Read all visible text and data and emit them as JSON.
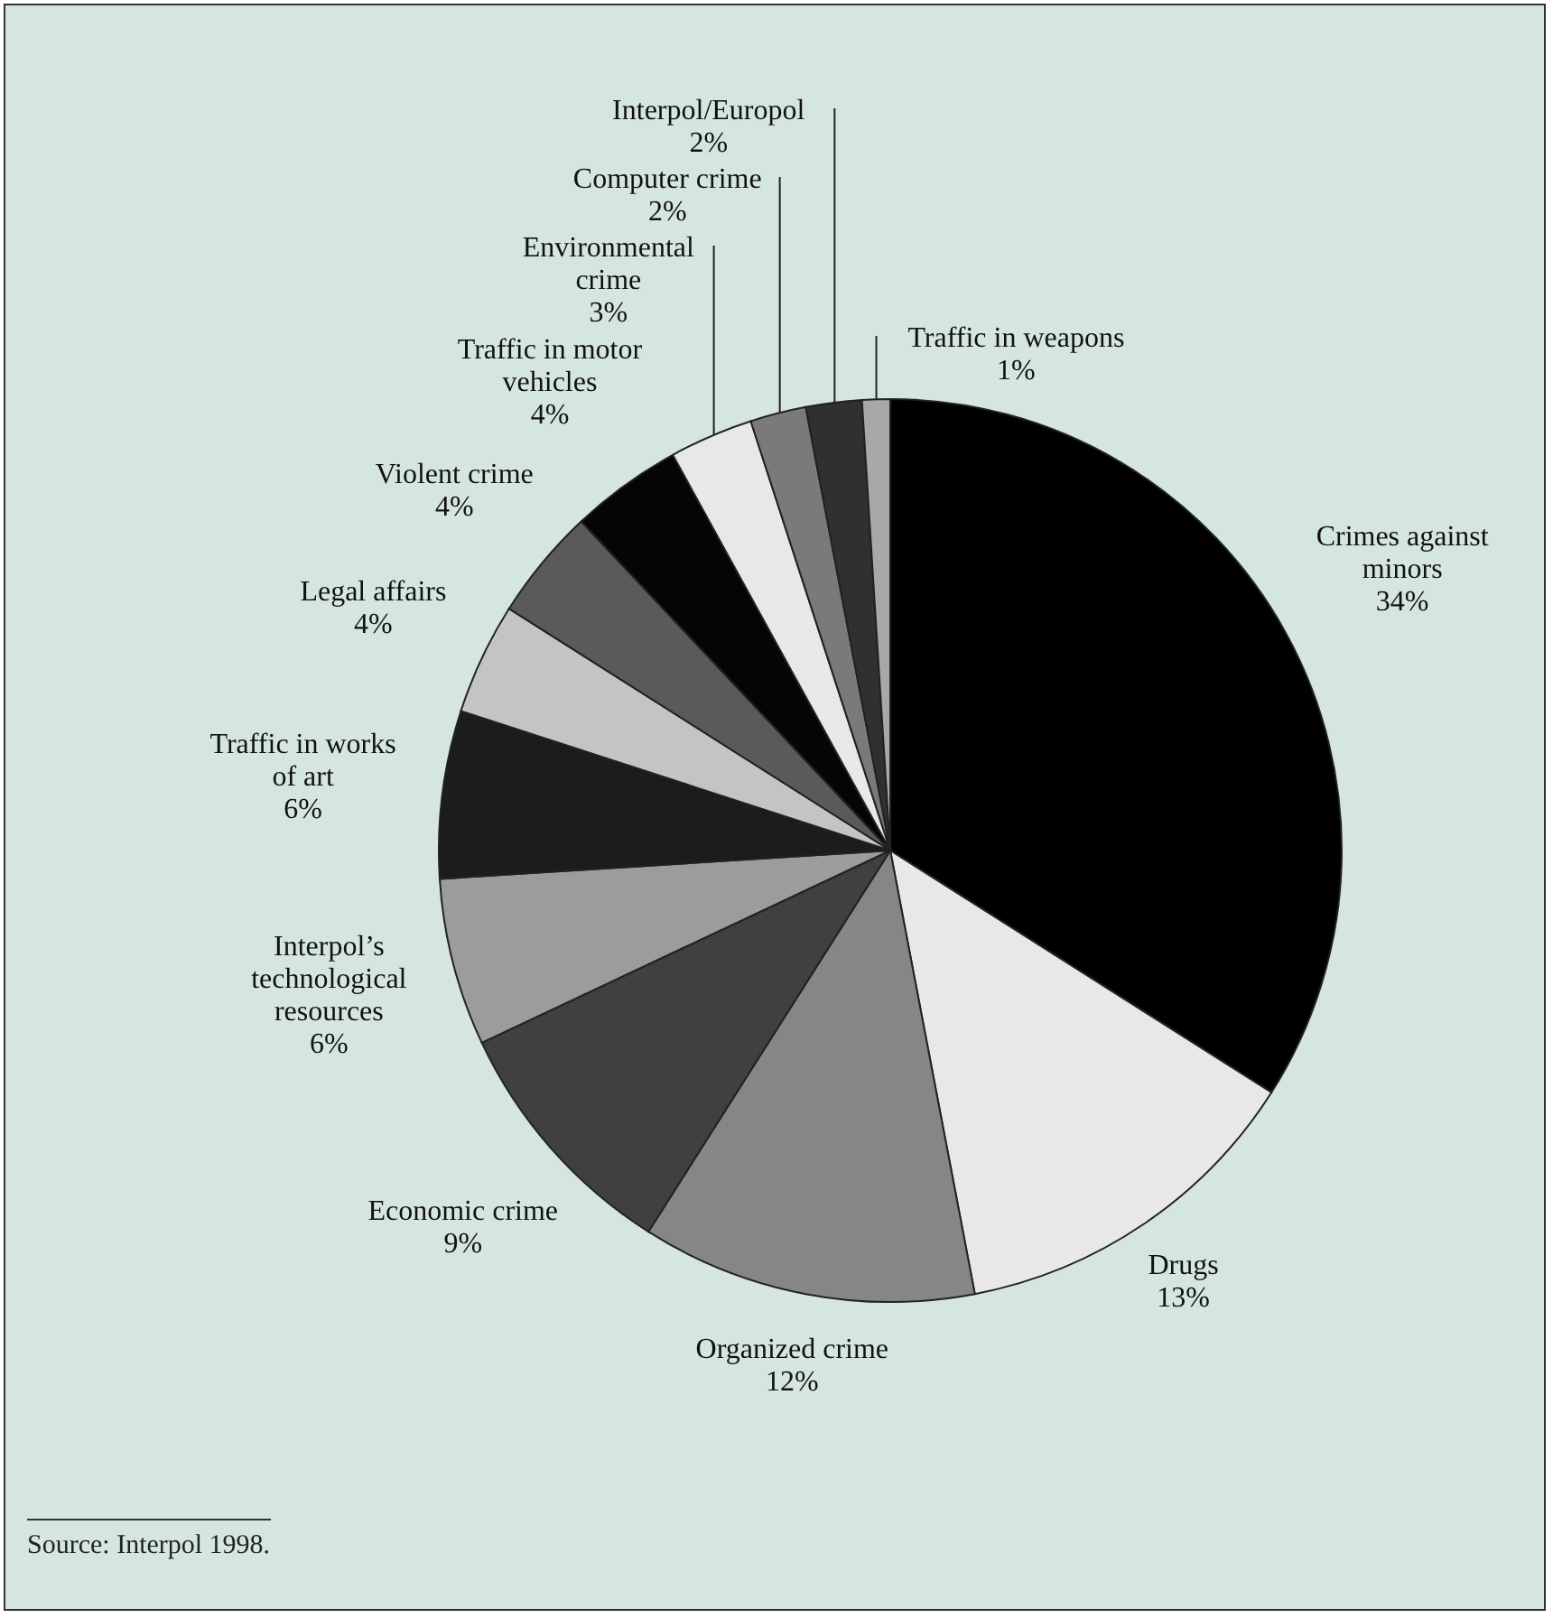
{
  "chart_data": {
    "type": "pie",
    "categories": [
      "Crimes against minors",
      "Drugs",
      "Organized crime",
      "Economic crime",
      "Interpol’s technological resources",
      "Traffic in works of art",
      "Legal affairs",
      "Violent crime",
      "Traffic in motor vehicles",
      "Environmental crime",
      "Computer crime",
      "Interpol/Europol",
      "Traffic in weapons"
    ],
    "values": [
      34,
      13,
      12,
      9,
      6,
      6,
      4,
      4,
      4,
      3,
      2,
      2,
      1
    ],
    "value_labels": [
      "34%",
      "13%",
      "12%",
      "9%",
      "6%",
      "6%",
      "4%",
      "4%",
      "4%",
      "3%",
      "2%",
      "2%",
      "1%"
    ],
    "colors": [
      "#000000",
      "#e8e8e8",
      "#868686",
      "#404040",
      "#9c9c9c",
      "#1c1c1c",
      "#c4c4c4",
      "#5a5a5a",
      "#050505",
      "#e8e8e8",
      "#7a7a7a",
      "#303030",
      "#a8a8a8"
    ],
    "annotations": [
      "Source: Interpol 1998."
    ]
  }
}
